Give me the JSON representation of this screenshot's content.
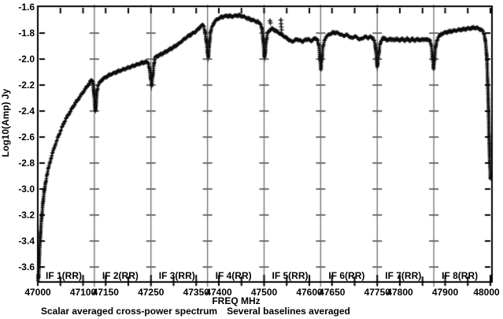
{
  "figure": {
    "y_axis_title": "Log10(Amp) Jy",
    "x_axis_title": "FREQ MHz",
    "caption_left": "Scalar averaged cross-power spectrum",
    "caption_right": "Several baselines averaged"
  },
  "chart_data": {
    "type": "line",
    "series_name": "scalar averaged cross-power spectrum (several baselines averaged)",
    "marker": "+",
    "xlabel": "FREQ MHz",
    "ylabel": "Log10(Amp) Jy",
    "xlim": [
      47000,
      48003
    ],
    "ylim": [
      -3.72,
      -1.6
    ],
    "grid": "vertical panel dividers with per-panel y tick dashes",
    "colors": {
      "background": "#ffffff",
      "frame": "#000000",
      "divider": "#6e6e6e",
      "data": "#0c0c0c",
      "text": "#000000"
    },
    "y_ticks": [
      {
        "v": -1.6,
        "label": "-1.6"
      },
      {
        "v": -1.8,
        "label": "-1.8"
      },
      {
        "v": -2.0,
        "label": "-2.0"
      },
      {
        "v": -2.2,
        "label": "-2.2"
      },
      {
        "v": -2.4,
        "label": "-2.4"
      },
      {
        "v": -2.6,
        "label": "-2.6"
      },
      {
        "v": -2.8,
        "label": "-2.8"
      },
      {
        "v": -3.0,
        "label": "-3.0"
      },
      {
        "v": -3.2,
        "label": "-3.2"
      },
      {
        "v": -3.4,
        "label": "-3.4"
      },
      {
        "v": -3.6,
        "label": "-3.6"
      }
    ],
    "x_tick_labels": [
      {
        "f": 47000,
        "label": "47000"
      },
      {
        "f": 47100,
        "label": "47100"
      },
      {
        "f": 47150,
        "label": "47150"
      },
      {
        "f": 47250,
        "label": "47250"
      },
      {
        "f": 47350,
        "label": "47350"
      },
      {
        "f": 47400,
        "label": "47400"
      },
      {
        "f": 47500,
        "label": "47500"
      },
      {
        "f": 47600,
        "label": "47600"
      },
      {
        "f": 47650,
        "label": "47650"
      },
      {
        "f": 47750,
        "label": "47750"
      },
      {
        "f": 47800,
        "label": "47800"
      },
      {
        "f": 47900,
        "label": "47900"
      },
      {
        "f": 48000,
        "label": "48000"
      }
    ],
    "x_minor_tick_step_mhz": 50,
    "panels": [
      {
        "label": "IF 1(RR)",
        "start": 47000
      },
      {
        "label": "IF 2(RR)",
        "start": 47125
      },
      {
        "label": "IF 3(RR)",
        "start": 47250
      },
      {
        "label": "IF 4(RR)",
        "start": 47375
      },
      {
        "label": "IF 5(RR)",
        "start": 47500
      },
      {
        "label": "IF 6(RR)",
        "start": 47625
      },
      {
        "label": "IF 7(RR)",
        "start": 47750
      },
      {
        "label": "IF 8(RR)",
        "start": 47875
      }
    ],
    "panel_boundaries_mhz": [
      47125,
      47250,
      47375,
      47500,
      47625,
      47750,
      47875
    ],
    "anchors": [
      [
        47000.6,
        -3.7
      ],
      [
        47001.2,
        -3.66
      ],
      [
        47001.8,
        -3.69
      ],
      [
        47002.5,
        -3.6
      ],
      [
        47003.5,
        -3.5
      ],
      [
        47004.5,
        -3.43
      ],
      [
        47005.5,
        -3.37
      ],
      [
        47006.5,
        -3.31
      ],
      [
        47008,
        -3.24
      ],
      [
        47009.5,
        -3.18
      ],
      [
        47011,
        -3.12
      ],
      [
        47013,
        -3.06
      ],
      [
        47015,
        -3.0
      ],
      [
        47017,
        -2.955
      ],
      [
        47019,
        -2.915
      ],
      [
        47022,
        -2.865
      ],
      [
        47025,
        -2.82
      ],
      [
        47028,
        -2.78
      ],
      [
        47032,
        -2.73
      ],
      [
        47036,
        -2.685
      ],
      [
        47040,
        -2.645
      ],
      [
        47045,
        -2.6
      ],
      [
        47050,
        -2.555
      ],
      [
        47056,
        -2.505
      ],
      [
        47062,
        -2.46
      ],
      [
        47068,
        -2.425
      ],
      [
        47074,
        -2.39
      ],
      [
        47080,
        -2.355
      ],
      [
        47086,
        -2.325
      ],
      [
        47092,
        -2.295
      ],
      [
        47098,
        -2.265
      ],
      [
        47104,
        -2.235
      ],
      [
        47109,
        -2.21
      ],
      [
        47113,
        -2.19
      ],
      [
        47117,
        -2.17
      ],
      [
        47120,
        -2.16
      ],
      [
        47122,
        -2.175
      ],
      [
        47124,
        -2.26
      ],
      [
        47126,
        -2.36
      ],
      [
        47127.5,
        -2.41
      ],
      [
        47129,
        -2.33
      ],
      [
        47131,
        -2.24
      ],
      [
        47133,
        -2.205
      ],
      [
        47136,
        -2.185
      ],
      [
        47140,
        -2.165
      ],
      [
        47145,
        -2.15
      ],
      [
        47152,
        -2.135
      ],
      [
        47160,
        -2.12
      ],
      [
        47170,
        -2.105
      ],
      [
        47181,
        -2.09
      ],
      [
        47193,
        -2.075
      ],
      [
        47205,
        -2.06
      ],
      [
        47217,
        -2.045
      ],
      [
        47228,
        -2.032
      ],
      [
        47238,
        -2.022
      ],
      [
        47244,
        -2.028
      ],
      [
        47247,
        -2.07
      ],
      [
        47249,
        -2.14
      ],
      [
        47251.5,
        -2.205
      ],
      [
        47254,
        -2.12
      ],
      [
        47257,
        -2.03
      ],
      [
        47260,
        -1.985
      ],
      [
        47268,
        -1.97
      ],
      [
        47280,
        -1.95
      ],
      [
        47292,
        -1.925
      ],
      [
        47304,
        -1.9
      ],
      [
        47314,
        -1.875
      ],
      [
        47324,
        -1.845
      ],
      [
        47333,
        -1.822
      ],
      [
        47341,
        -1.805
      ],
      [
        47348,
        -1.79
      ],
      [
        47354,
        -1.772
      ],
      [
        47359,
        -1.752
      ],
      [
        47363,
        -1.738
      ],
      [
        47366,
        -1.742
      ],
      [
        47369,
        -1.775
      ],
      [
        47372,
        -1.85
      ],
      [
        47374.5,
        -1.94
      ],
      [
        47376.5,
        -1.99
      ],
      [
        47378.5,
        -1.91
      ],
      [
        47381,
        -1.81
      ],
      [
        47384,
        -1.762
      ],
      [
        47388,
        -1.728
      ],
      [
        47393,
        -1.703
      ],
      [
        47399,
        -1.688
      ],
      [
        47406,
        -1.677
      ],
      [
        47414,
        -1.67
      ],
      [
        47421,
        -1.667
      ],
      [
        47428,
        -1.672
      ],
      [
        47435,
        -1.668
      ],
      [
        47442,
        -1.663
      ],
      [
        47449,
        -1.668
      ],
      [
        47456,
        -1.675
      ],
      [
        47463,
        -1.687
      ],
      [
        47470,
        -1.695
      ],
      [
        47477,
        -1.703
      ],
      [
        47484,
        -1.712
      ],
      [
        47489,
        -1.72
      ],
      [
        47493,
        -1.733
      ],
      [
        47495.5,
        -1.77
      ],
      [
        47497.5,
        -1.84
      ],
      [
        47499.5,
        -1.93
      ],
      [
        47501,
        -1.985
      ],
      [
        47503,
        -1.93
      ],
      [
        47505,
        -1.855
      ],
      [
        47508,
        -1.8
      ],
      [
        47511,
        -1.782
      ],
      [
        47514,
        -1.772
      ],
      [
        47518,
        -1.768
      ],
      [
        47524,
        -1.778
      ],
      [
        47531,
        -1.795
      ],
      [
        47539,
        -1.812
      ],
      [
        47547,
        -1.832
      ],
      [
        47555,
        -1.852
      ],
      [
        47561,
        -1.866
      ],
      [
        47567,
        -1.857
      ],
      [
        47573,
        -1.847
      ],
      [
        47579,
        -1.857
      ],
      [
        47585,
        -1.865
      ],
      [
        47591,
        -1.853
      ],
      [
        47597,
        -1.845
      ],
      [
        47603,
        -1.862
      ],
      [
        47609,
        -1.848
      ],
      [
        47614,
        -1.84
      ],
      [
        47618,
        -1.852
      ],
      [
        47621,
        -1.9
      ],
      [
        47623.5,
        -2.0
      ],
      [
        47625.5,
        -2.075
      ],
      [
        47627.5,
        -2.0
      ],
      [
        47630,
        -1.915
      ],
      [
        47633,
        -1.862
      ],
      [
        47637,
        -1.828
      ],
      [
        47643,
        -1.812
      ],
      [
        47650,
        -1.8
      ],
      [
        47657,
        -1.795
      ],
      [
        47664,
        -1.802
      ],
      [
        47670,
        -1.812
      ],
      [
        47676,
        -1.822
      ],
      [
        47682,
        -1.812
      ],
      [
        47688,
        -1.826
      ],
      [
        47694,
        -1.84
      ],
      [
        47700,
        -1.824
      ],
      [
        47706,
        -1.836
      ],
      [
        47712,
        -1.85
      ],
      [
        47718,
        -1.838
      ],
      [
        47724,
        -1.828
      ],
      [
        47730,
        -1.837
      ],
      [
        47736,
        -1.828
      ],
      [
        47741,
        -1.84
      ],
      [
        47745,
        -1.878
      ],
      [
        47747.5,
        -1.96
      ],
      [
        47750,
        -2.06
      ],
      [
        47752.5,
        -1.99
      ],
      [
        47755,
        -1.91
      ],
      [
        47758,
        -1.862
      ],
      [
        47762,
        -1.84
      ],
      [
        47768,
        -1.845
      ],
      [
        47774,
        -1.855
      ],
      [
        47780,
        -1.843
      ],
      [
        47786,
        -1.856
      ],
      [
        47792,
        -1.844
      ],
      [
        47798,
        -1.857
      ],
      [
        47804,
        -1.845
      ],
      [
        47810,
        -1.857
      ],
      [
        47816,
        -1.846
      ],
      [
        47822,
        -1.857
      ],
      [
        47828,
        -1.846
      ],
      [
        47834,
        -1.857
      ],
      [
        47840,
        -1.847
      ],
      [
        47846,
        -1.856
      ],
      [
        47852,
        -1.846
      ],
      [
        47858,
        -1.853
      ],
      [
        47863,
        -1.847
      ],
      [
        47867,
        -1.862
      ],
      [
        47870,
        -1.91
      ],
      [
        47872.5,
        -2.0
      ],
      [
        47874.5,
        -2.07
      ],
      [
        47876.5,
        -2.0
      ],
      [
        47879,
        -1.91
      ],
      [
        47882,
        -1.855
      ],
      [
        47886,
        -1.825
      ],
      [
        47892,
        -1.807
      ],
      [
        47900,
        -1.796
      ],
      [
        47910,
        -1.788
      ],
      [
        47920,
        -1.782
      ],
      [
        47930,
        -1.776
      ],
      [
        47940,
        -1.771
      ],
      [
        47950,
        -1.766
      ],
      [
        47958,
        -1.762
      ],
      [
        47965,
        -1.758
      ],
      [
        47971,
        -1.762
      ],
      [
        47976,
        -1.768
      ],
      [
        47981,
        -1.778
      ],
      [
        47985,
        -1.795
      ],
      [
        47988,
        -1.835
      ],
      [
        47990,
        -1.9
      ],
      [
        47992,
        -1.99
      ],
      [
        47993.5,
        -2.12
      ],
      [
        47995,
        -2.28
      ],
      [
        47996,
        -2.42
      ],
      [
        47997,
        -2.57
      ],
      [
        47998,
        -2.71
      ],
      [
        47999,
        -2.83
      ],
      [
        48000,
        -2.92
      ]
    ],
    "outliers": [
      [
        47513,
        -1.705
      ],
      [
        47514,
        -1.722
      ],
      [
        47537,
        -1.7
      ],
      [
        47537.5,
        -1.728
      ],
      [
        47538,
        -1.752
      ],
      [
        47538.5,
        -1.775
      ]
    ]
  }
}
